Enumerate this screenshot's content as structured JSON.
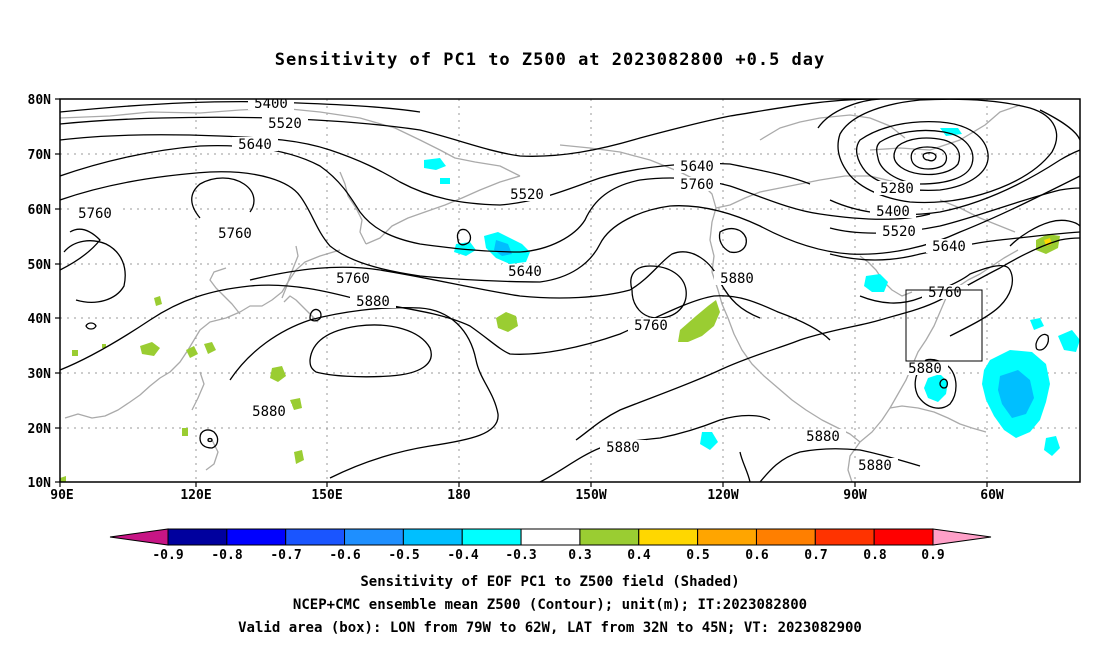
{
  "title": "Sensitivity of PC1 to Z500 at 2023082800 +0.5 day",
  "lat_labels": [
    "80N",
    "70N",
    "60N",
    "50N",
    "40N",
    "30N",
    "20N",
    "10N"
  ],
  "lon_labels": [
    "90E",
    "120E",
    "150E",
    "180",
    "150W",
    "120W",
    "90W",
    "60W"
  ],
  "contour_labels": {
    "c5400a": "5400",
    "c5520a": "5520",
    "c5640a": "5640",
    "c5760a": "5760",
    "c5760b": "5760",
    "c5520b": "5520",
    "c5640b": "5640",
    "c5760c": "5760",
    "c5880a": "5880",
    "c5640c": "5640",
    "c5760d": "5760",
    "c5760e": "5760",
    "c5880b": "5880",
    "c5280": "5280",
    "c5400b": "5400",
    "c5520c": "5520",
    "c5640d": "5640",
    "c5760f": "5760",
    "c5880c": "5880",
    "c5880d": "5880",
    "c5880e": "5880",
    "c5880f": "5880",
    "c5880g": "5880"
  },
  "colorbar": {
    "labels": [
      "-0.9",
      "-0.8",
      "-0.7",
      "-0.6",
      "-0.5",
      "-0.4",
      "-0.3",
      "0.3",
      "0.4",
      "0.5",
      "0.6",
      "0.7",
      "0.8",
      "0.9"
    ],
    "colors": [
      "#00009e",
      "#0000ff",
      "#1a55ff",
      "#1e8fff",
      "#00bfff",
      "#00ffff",
      "#ffffff",
      "#9acd32",
      "#ffd700",
      "#ffa500",
      "#ff7f00",
      "#ff3300",
      "#ff0000"
    ],
    "low_color": "#c71585",
    "high_color": "#ffa0c8"
  },
  "captions": {
    "line1": "Sensitivity of EOF PC1 to Z500 field (Shaded)",
    "line2": "NCEP+CMC ensemble mean Z500 (Contour); unit(m); IT:2023082800",
    "line3": "Valid area (box): LON from 79W to 62W, LAT from 32N to 45N; VT: 2023082900"
  },
  "colors": {
    "positive": "#9acd32",
    "negative": "#00ffff",
    "negative_strong": "#00bfff",
    "coast": "#aaaaaa",
    "contour": "#000000"
  }
}
